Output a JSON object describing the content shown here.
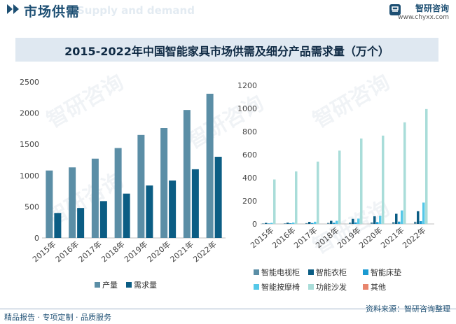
{
  "header": {
    "title": "市场供需",
    "subtitle": "Supply and demand",
    "brand_name": "智研咨询",
    "brand_url": "www.chyxx.com"
  },
  "chart_title": "2015-2022年中国智能家具市场供需及细分产品需求量（万个）",
  "watermark": "智研咨询",
  "footer": {
    "left": "精品报告 · 专项定制 · 品质服务",
    "source": "资料来源：智研咨询整理"
  },
  "colors": {
    "brand": "#1d4f73",
    "production": "#5b8ea6",
    "demand": "#0b5d84",
    "tv_cabinet": "#5b8ea6",
    "wardrobe": "#0b5d84",
    "bed": "#1b9ad1",
    "massage_chair": "#55c8e8",
    "sofa": "#a9ddd9",
    "other": "#e8856d"
  },
  "chart_data": [
    {
      "type": "bar",
      "categories": [
        "2015年",
        "2016年",
        "2017年",
        "2018年",
        "2019年",
        "2020年",
        "2021年",
        "2022年"
      ],
      "series": [
        {
          "name": "产量",
          "values": [
            1080,
            1130,
            1270,
            1440,
            1650,
            1760,
            2050,
            2310
          ]
        },
        {
          "name": "需求量",
          "values": [
            400,
            480,
            590,
            710,
            840,
            920,
            1100,
            1300
          ]
        }
      ],
      "ylim": [
        0,
        2500
      ],
      "yticks": [
        0,
        500,
        1000,
        1500,
        2000,
        2500
      ],
      "legend": "bottom"
    },
    {
      "type": "bar",
      "categories": [
        "2015年",
        "2016年",
        "2017年",
        "2018年",
        "2019年",
        "2020年",
        "2021年",
        "2022年"
      ],
      "series": [
        {
          "name": "智能电视柜",
          "values": [
            4,
            5,
            7,
            9,
            11,
            13,
            16,
            19
          ]
        },
        {
          "name": "智能衣柜",
          "values": [
            9,
            11,
            18,
            27,
            44,
            66,
            88,
            110
          ]
        },
        {
          "name": "智能床垫",
          "values": [
            4,
            6,
            8,
            10,
            13,
            16,
            20,
            24
          ]
        },
        {
          "name": "智能按摩椅",
          "values": [
            9,
            12,
            19,
            27,
            46,
            70,
            117,
            185
          ]
        },
        {
          "name": "功能沙发",
          "values": [
            385,
            455,
            540,
            635,
            740,
            765,
            880,
            995
          ]
        },
        {
          "name": "其他",
          "values": [
            0,
            0,
            0,
            0,
            0,
            0,
            0,
            0
          ]
        }
      ],
      "ylim": [
        0,
        1200
      ],
      "yticks": [
        0,
        200,
        400,
        600,
        800,
        1000,
        1200
      ],
      "legend": "bottom"
    }
  ]
}
